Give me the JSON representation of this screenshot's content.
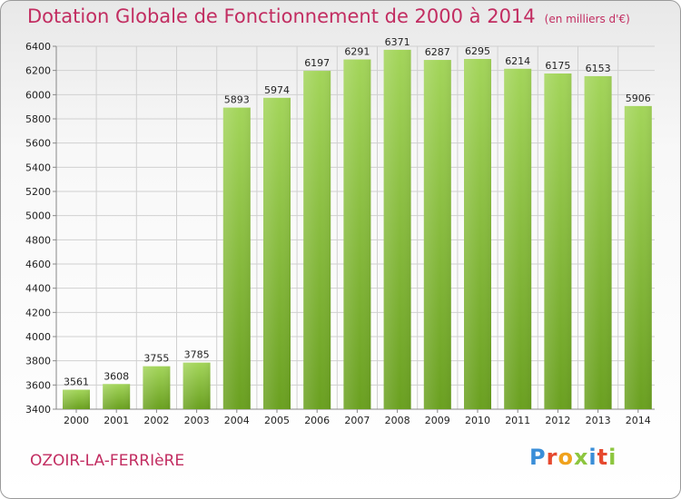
{
  "chart_data": {
    "type": "bar",
    "title": "Dotation Globale de Fonctionnement de 2000 à 2014",
    "subtitle": "(en milliers d'€)",
    "categories": [
      "2000",
      "2001",
      "2002",
      "2003",
      "2004",
      "2005",
      "2006",
      "2007",
      "2008",
      "2009",
      "2010",
      "2011",
      "2012",
      "2013",
      "2014"
    ],
    "values": [
      3561,
      3608,
      3755,
      3785,
      5893,
      5974,
      6197,
      6291,
      6371,
      6287,
      6295,
      6214,
      6175,
      6153,
      5906
    ],
    "ylim": [
      3400,
      6400
    ],
    "yticks": [
      3400,
      3600,
      3800,
      4000,
      4200,
      4400,
      4600,
      4800,
      5000,
      5200,
      5400,
      5600,
      5800,
      6000,
      6200,
      6400
    ],
    "grid": true,
    "legend": "none",
    "colors": {
      "bar_light": "#a3d55a",
      "bar_dark": "#6aa020",
      "grid": "#d0d0d0",
      "text_accent": "#c22d61"
    }
  },
  "footer": {
    "commune": "OZOIR-LA-FERRIèRE",
    "logo_text": "Proxiti"
  }
}
